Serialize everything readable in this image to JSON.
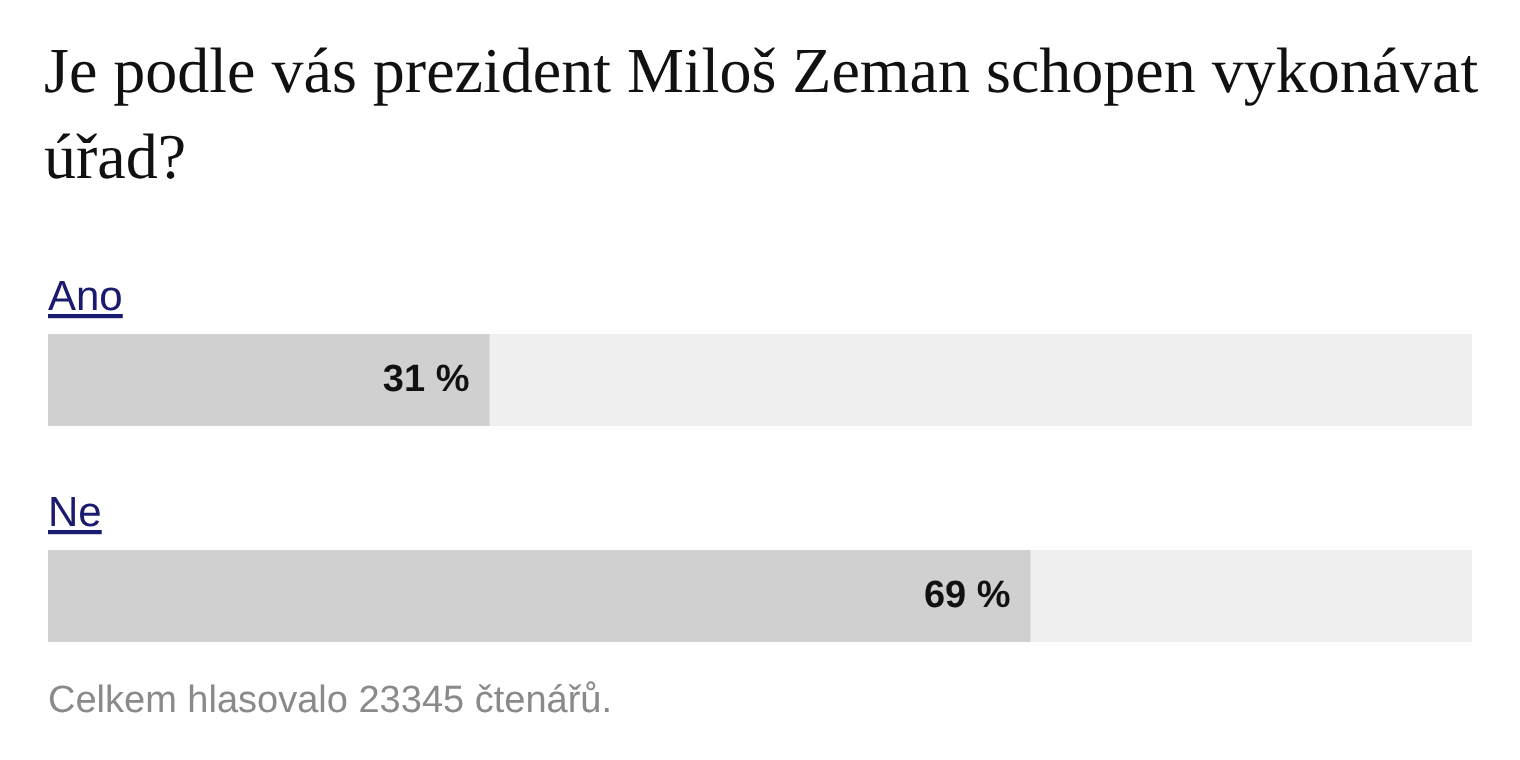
{
  "chart_data": {
    "type": "bar",
    "orientation": "horizontal",
    "title": "Je podle vás prezident Miloš Zeman schopen vykonávat úřad?",
    "categories": [
      "Ano",
      "Ne"
    ],
    "values": [
      31,
      69
    ],
    "value_labels": [
      "31 %",
      "69 %"
    ],
    "color": "#d0d0d0",
    "xlim": [
      0,
      100
    ],
    "tick_labels": false,
    "annotations": [
      "Celkem hlasovalo 23345 čtenářů."
    ]
  }
}
